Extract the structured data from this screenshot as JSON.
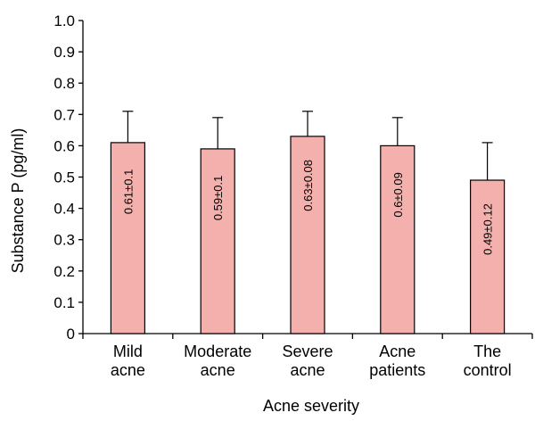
{
  "chart_data": {
    "type": "bar",
    "title": "",
    "xlabel": "Acne severity",
    "ylabel": "Substance P (pg/ml)",
    "ylim": [
      0,
      1.0
    ],
    "yticks": [
      "0",
      "0.1",
      "0.2",
      "0.3",
      "0.4",
      "0.5",
      "0.6",
      "0.7",
      "0.8",
      "0.9",
      "1.0"
    ],
    "grid": false,
    "categories": [
      [
        "Mild",
        "acne"
      ],
      [
        "Moderate",
        "acne"
      ],
      [
        "Severe",
        "acne"
      ],
      [
        "Acne",
        "patients"
      ],
      [
        "The",
        "control"
      ]
    ],
    "values": [
      0.61,
      0.59,
      0.63,
      0.6,
      0.49
    ],
    "errors": [
      0.1,
      0.1,
      0.08,
      0.09,
      0.12
    ],
    "data_labels": [
      "0.61±0.1",
      "0.59±0.1",
      "0.63±0.08",
      "0.6±0.09",
      "0.49±0.12"
    ],
    "bar_color": "#f4b0ad",
    "bar_stroke": "#000000"
  }
}
